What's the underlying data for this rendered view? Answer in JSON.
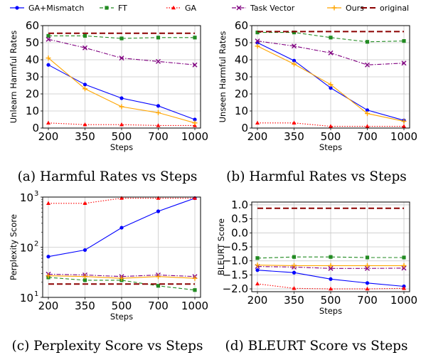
{
  "legend": [
    {
      "name": "GA+Mismatch",
      "color": "#0000ff",
      "dash": "",
      "marker": "circle"
    },
    {
      "name": "FT",
      "color": "#228b22",
      "dash": "5,3",
      "marker": "square"
    },
    {
      "name": "GA",
      "color": "#ff0000",
      "dash": "1.5,2",
      "marker": "triangle"
    },
    {
      "name": "Task Vector",
      "color": "#800080",
      "dash": "6,2,1.5,2",
      "marker": "x"
    },
    {
      "name": "Ours",
      "color": "#ffa500",
      "dash": "",
      "marker": "plus"
    },
    {
      "name": "original",
      "color": "#8b0000",
      "dash": "8,4",
      "marker": "none"
    }
  ],
  "chart_data": [
    {
      "type": "line",
      "caption": "(a) Harmful Rates vs Steps",
      "xlabel": "Steps",
      "ylabel": "Unlearn Harmful Rates",
      "x": [
        200,
        350,
        500,
        700,
        1000
      ],
      "x_tick_labels": [
        "200",
        "350",
        "500",
        "700",
        "1000"
      ],
      "yscale": "linear",
      "ylim": [
        0,
        60
      ],
      "y_ticks": [
        0,
        10,
        20,
        30,
        40,
        50,
        60
      ],
      "y_tick_labels": [
        "0",
        "10",
        "20",
        "30",
        "40",
        "50",
        "60"
      ],
      "grid": true,
      "series": [
        {
          "name": "GA+Mismatch",
          "values": [
            37,
            25.5,
            17.5,
            13,
            5
          ]
        },
        {
          "name": "FT",
          "values": [
            54,
            54,
            52.5,
            53,
            53
          ]
        },
        {
          "name": "GA",
          "values": [
            3,
            2,
            2,
            1.5,
            1.5
          ]
        },
        {
          "name": "Task Vector",
          "values": [
            52,
            47,
            41,
            39,
            37
          ]
        },
        {
          "name": "Ours",
          "values": [
            41,
            23,
            12.5,
            9,
            3
          ]
        },
        {
          "name": "original",
          "values": [
            55.5,
            55.5,
            55.5,
            55.5,
            55.5
          ]
        }
      ]
    },
    {
      "type": "line",
      "caption": "(b) Harmful Rates vs Steps",
      "xlabel": "Steps",
      "ylabel": "Unseen Harmful Rates",
      "x": [
        200,
        350,
        500,
        700,
        1000
      ],
      "x_tick_labels": [
        "200",
        "350",
        "500",
        "700",
        "1000"
      ],
      "yscale": "linear",
      "ylim": [
        0,
        60
      ],
      "y_ticks": [
        0,
        10,
        20,
        30,
        40,
        50,
        60
      ],
      "y_tick_labels": [
        "0",
        "10",
        "20",
        "30",
        "40",
        "50",
        "60"
      ],
      "grid": true,
      "series": [
        {
          "name": "GA+Mismatch",
          "values": [
            50,
            39.5,
            23.5,
            10.5,
            4.5
          ]
        },
        {
          "name": "FT",
          "values": [
            56,
            56,
            53,
            50.5,
            51
          ]
        },
        {
          "name": "GA",
          "values": [
            3,
            3,
            1,
            1,
            1
          ]
        },
        {
          "name": "Task Vector",
          "values": [
            51,
            48,
            44,
            37,
            38
          ]
        },
        {
          "name": "Ours",
          "values": [
            48,
            37.5,
            25.5,
            8.5,
            4
          ]
        },
        {
          "name": "original",
          "values": [
            56.5,
            56.5,
            56.5,
            56.5,
            56.5
          ]
        }
      ]
    },
    {
      "type": "line",
      "caption": "(c) Perplexity Score vs Steps",
      "xlabel": "Steps",
      "ylabel": "Perplexity Score",
      "x": [
        200,
        350,
        500,
        700,
        1000
      ],
      "x_tick_labels": [
        "200",
        "350",
        "500",
        "700",
        "1000"
      ],
      "yscale": "log",
      "ylim": [
        10,
        1000
      ],
      "y_ticks": [
        10,
        100,
        1000
      ],
      "y_tick_labels": [
        "10",
        "10",
        "10"
      ],
      "y_tick_exponents": [
        "1",
        "2",
        "3"
      ],
      "grid": true,
      "series": [
        {
          "name": "GA+Mismatch",
          "values": [
            65,
            88,
            245,
            520,
            950
          ]
        },
        {
          "name": "FT",
          "values": [
            25,
            22,
            22,
            17,
            14
          ]
        },
        {
          "name": "GA",
          "values": [
            750,
            750,
            950,
            950,
            950
          ]
        },
        {
          "name": "Task Vector",
          "values": [
            29,
            28,
            26,
            28,
            26
          ]
        },
        {
          "name": "Ours",
          "values": [
            27,
            26,
            24,
            26,
            24
          ]
        },
        {
          "name": "original",
          "values": [
            18.5,
            18.5,
            18.5,
            18.5,
            18.5
          ]
        }
      ]
    },
    {
      "type": "line",
      "caption": "(d) BLEURT Score vs Steps",
      "xlabel": "Steps",
      "ylabel": "BLEURT Score",
      "x": [
        200,
        350,
        500,
        700,
        1000
      ],
      "x_tick_labels": [
        "200",
        "350",
        "500",
        "700",
        "1000"
      ],
      "yscale": "linear",
      "ylim": [
        -2.1,
        1.1
      ],
      "y_ticks": [
        1.0,
        0.5,
        0.0,
        -0.5,
        -1.0,
        -1.5,
        -2.0
      ],
      "y_tick_labels": [
        "1.0",
        "0.5",
        "0.0",
        "−0.5",
        "−1.0",
        "−1.5",
        "−2.0"
      ],
      "grid": true,
      "series": [
        {
          "name": "GA+Mismatch",
          "values": [
            -1.33,
            -1.42,
            -1.65,
            -1.79,
            -1.91
          ]
        },
        {
          "name": "FT",
          "values": [
            -0.9,
            -0.86,
            -0.86,
            -0.88,
            -0.88
          ]
        },
        {
          "name": "GA",
          "values": [
            -1.82,
            -1.98,
            -2.0,
            -2.0,
            -1.98
          ]
        },
        {
          "name": "Task Vector",
          "values": [
            -1.2,
            -1.22,
            -1.27,
            -1.27,
            -1.26
          ]
        },
        {
          "name": "Ours",
          "values": [
            -1.15,
            -1.17,
            -1.17,
            -1.17,
            -1.17
          ]
        },
        {
          "name": "original",
          "values": [
            0.88,
            0.88,
            0.88,
            0.88,
            0.88
          ]
        }
      ]
    }
  ]
}
